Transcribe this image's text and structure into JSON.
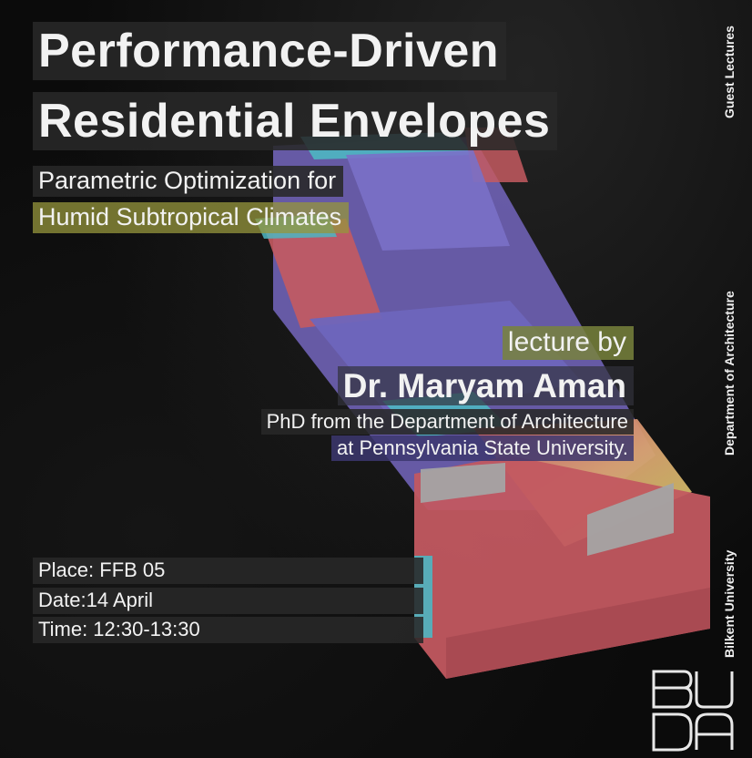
{
  "title": {
    "line1": "Performance-Driven",
    "line2": "Residential Envelopes"
  },
  "subtitle": {
    "line1": "Parametric Optimization for",
    "line2": "Humid Subtropical Climates"
  },
  "lecture": {
    "label": "lecture by",
    "speaker": "Dr. Maryam Aman",
    "affiliation_line1": "PhD from the Department of Architecture",
    "affiliation_line2": "at Pennsylvania State University."
  },
  "details": {
    "place": "Place: FFB 05",
    "date": "Date:14 April",
    "time": "Time: 12:30-13:30"
  },
  "sidebar": {
    "series": "Guest Lectures",
    "department": "Department of Architecture",
    "university": "Bilkent University"
  },
  "colors": {
    "red": "#c85a5a",
    "purple": "#6a62b8",
    "cyan": "#4fb8c4",
    "olive": "#a8a840",
    "grey": "#9a9a9a",
    "highlight_bg": "#282828"
  }
}
